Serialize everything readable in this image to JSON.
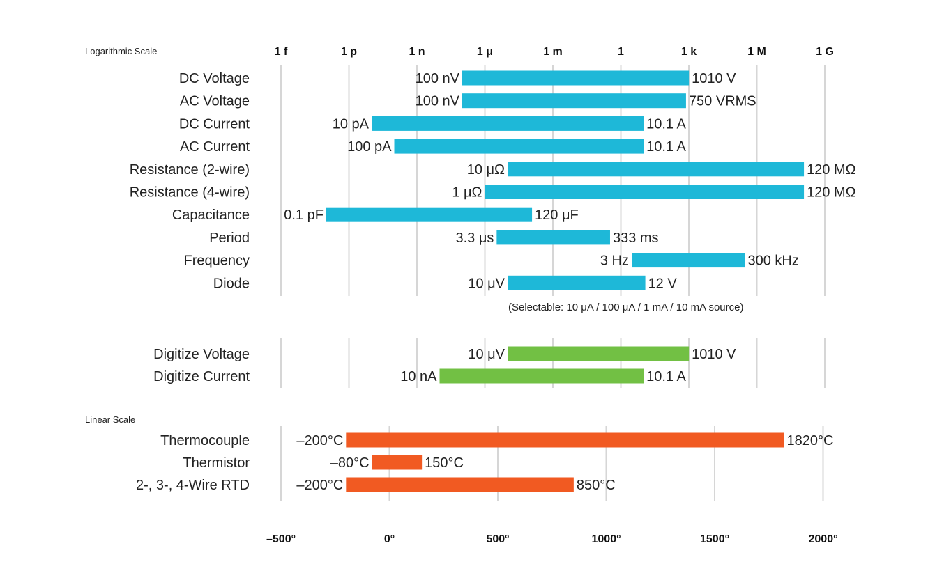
{
  "chart_data": [
    {
      "type": "bar",
      "subtype": "range-bar",
      "scale": "log",
      "section_label": "Logarithmic Scale",
      "tick_labels": [
        "1 f",
        "1 p",
        "1 n",
        "1 μ",
        "1 m",
        "1",
        "1 k",
        "1 M",
        "1 G"
      ],
      "tick_values": [
        1e-15,
        1e-12,
        1e-09,
        1e-06,
        0.001,
        1,
        1000.0,
        1000000.0,
        1000000000.0
      ],
      "xlim": [
        1e-15,
        1000000000.0
      ],
      "grid": true,
      "color": "#1eb8d8",
      "rows": [
        {
          "label": "DC Voltage",
          "min": 1e-07,
          "max": 1010,
          "min_label": "100 nV",
          "max_label": "1010 V"
        },
        {
          "label": "AC Voltage",
          "min": 1e-07,
          "max": 750,
          "min_label": "100 nV",
          "max_label": "750 VRMS"
        },
        {
          "label": "DC Current",
          "min": 1e-11,
          "max": 10.1,
          "min_label": "10 pA",
          "max_label": "10.1 A"
        },
        {
          "label": "AC Current",
          "min": 1e-10,
          "max": 10.1,
          "min_label": "100 pA",
          "max_label": "10.1 A"
        },
        {
          "label": "Resistance (2-wire)",
          "min": 1e-05,
          "max": 120000000.0,
          "min_label": "10 μΩ",
          "max_label": "120 MΩ"
        },
        {
          "label": "Resistance (4-wire)",
          "min": 1e-06,
          "max": 120000000.0,
          "min_label": "1 μΩ",
          "max_label": "120 MΩ"
        },
        {
          "label": "Capacitance",
          "min": 1e-13,
          "max": 0.00012,
          "min_label": "0.1 pF",
          "max_label": "120 μF"
        },
        {
          "label": "Period",
          "min": 3.3e-06,
          "max": 0.333,
          "min_label": "3.3 μs",
          "max_label": "333 ms"
        },
        {
          "label": "Frequency",
          "min": 3,
          "max": 300000.0,
          "min_label": "3 Hz",
          "max_label": "300 kHz"
        },
        {
          "label": "Diode",
          "min": 1e-05,
          "max": 12,
          "min_label": "10 μV",
          "max_label": "12 V"
        }
      ],
      "note": "(Selectable: 10 μA / 100 μA / 1 mA / 10 mA source)"
    },
    {
      "type": "bar",
      "subtype": "range-bar",
      "scale": "log",
      "xlim": [
        1e-15,
        1000000000.0
      ],
      "grid": true,
      "color": "#72c044",
      "rows": [
        {
          "label": "Digitize Voltage",
          "min": 1e-05,
          "max": 1010,
          "min_label": "10 μV",
          "max_label": "1010 V"
        },
        {
          "label": "Digitize Current",
          "min": 1e-08,
          "max": 10.1,
          "min_label": "10 nA",
          "max_label": "10.1 A"
        }
      ]
    },
    {
      "type": "bar",
      "subtype": "range-bar",
      "scale": "linear",
      "section_label": "Linear Scale",
      "tick_labels": [
        "–500°",
        "0°",
        "500°",
        "1000°",
        "1500°",
        "2000°"
      ],
      "tick_values": [
        -500,
        0,
        500,
        1000,
        1500,
        2000
      ],
      "xlim": [
        -500,
        2000
      ],
      "grid": true,
      "color": "#f15a22",
      "rows": [
        {
          "label": "Thermocouple",
          "min": -200,
          "max": 1820,
          "min_label": "–200°C",
          "max_label": "1820°C"
        },
        {
          "label": "Thermistor",
          "min": -80,
          "max": 150,
          "min_label": "–80°C",
          "max_label": "150°C"
        },
        {
          "label": "2-, 3-, 4-Wire RTD",
          "min": -200,
          "max": 850,
          "min_label": "–200°C",
          "max_label": "850°C"
        }
      ]
    }
  ]
}
